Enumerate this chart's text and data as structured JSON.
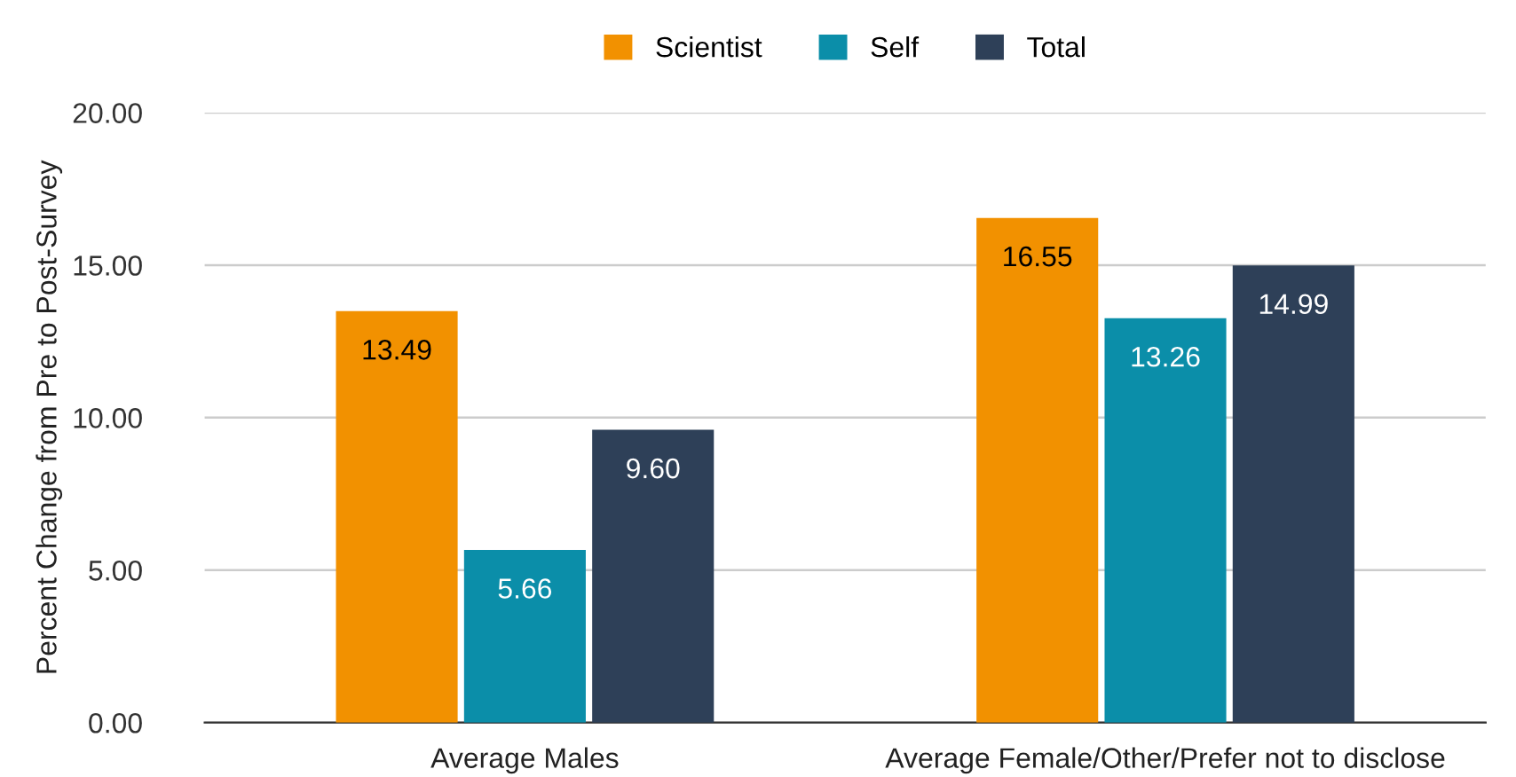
{
  "chart_data": {
    "type": "bar",
    "ylabel": "Percent Change from Pre to Post-Survey",
    "categories": [
      "Average Males",
      "Average Female/Other/Prefer not to disclose"
    ],
    "series": [
      {
        "name": "Scientist",
        "color": "#f29100",
        "values": [
          13.49,
          16.55
        ],
        "value_labels": [
          "13.49",
          "16.55"
        ]
      },
      {
        "name": "Self",
        "color": "#0b8ea9",
        "values": [
          5.66,
          13.26
        ],
        "value_labels": [
          "5.66",
          "13.26"
        ]
      },
      {
        "name": "Total",
        "color": "#2e4058",
        "values": [
          9.6,
          14.99
        ],
        "value_labels": [
          "9.60",
          "14.99"
        ]
      }
    ],
    "ylim": [
      0,
      20
    ],
    "yticks": [
      {
        "value": 0,
        "label": "0.00"
      },
      {
        "value": 5,
        "label": "5.00"
      },
      {
        "value": 10,
        "label": "10.00"
      },
      {
        "value": 15,
        "label": "15.00"
      },
      {
        "value": 20,
        "label": "20.00"
      }
    ],
    "grid": "y",
    "legend": "top"
  }
}
